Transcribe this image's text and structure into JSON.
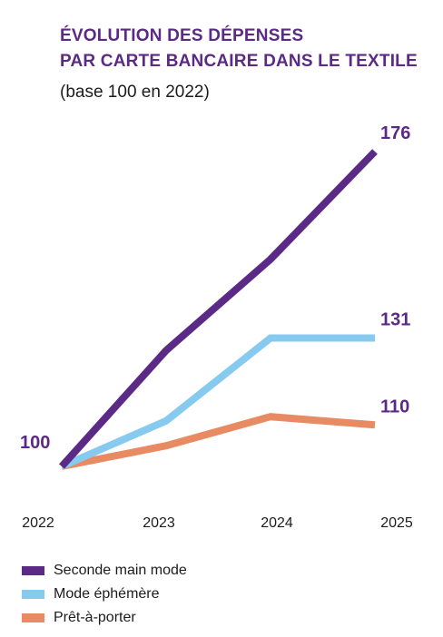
{
  "chart_data": {
    "type": "line",
    "title": "ÉVOLUTION DES DÉPENSES PAR CARTE BANCAIRE DANS LE TEXTILE",
    "title_lines": [
      "ÉVOLUTION DES DÉPENSES",
      "PAR CARTE BANCAIRE DANS LE TEXTILE"
    ],
    "subtitle": "(base 100 en 2022)",
    "x": [
      "2022",
      "2023",
      "2024",
      "2025"
    ],
    "series": [
      {
        "name": "Seconde main mode",
        "values": [
          100,
          128,
          150,
          176
        ],
        "color": "#5b2a86"
      },
      {
        "name": "Mode éphémère",
        "values": [
          100,
          111,
          131,
          131
        ],
        "color": "#86cbef"
      },
      {
        "name": "Prêt-à-porter",
        "values": [
          100,
          105,
          112,
          110
        ],
        "color": "#e88a62"
      }
    ],
    "value_labels": [
      {
        "text": "100",
        "x": "2022",
        "y": 100
      },
      {
        "text": "176",
        "x": "2025",
        "y": 176
      },
      {
        "text": "131",
        "x": "2025",
        "y": 131
      },
      {
        "text": "110",
        "x": "2025",
        "y": 110
      }
    ],
    "label_color": "#5b2a86",
    "ylim": [
      100,
      176
    ],
    "grid": false,
    "legend_position": "bottom-left"
  }
}
